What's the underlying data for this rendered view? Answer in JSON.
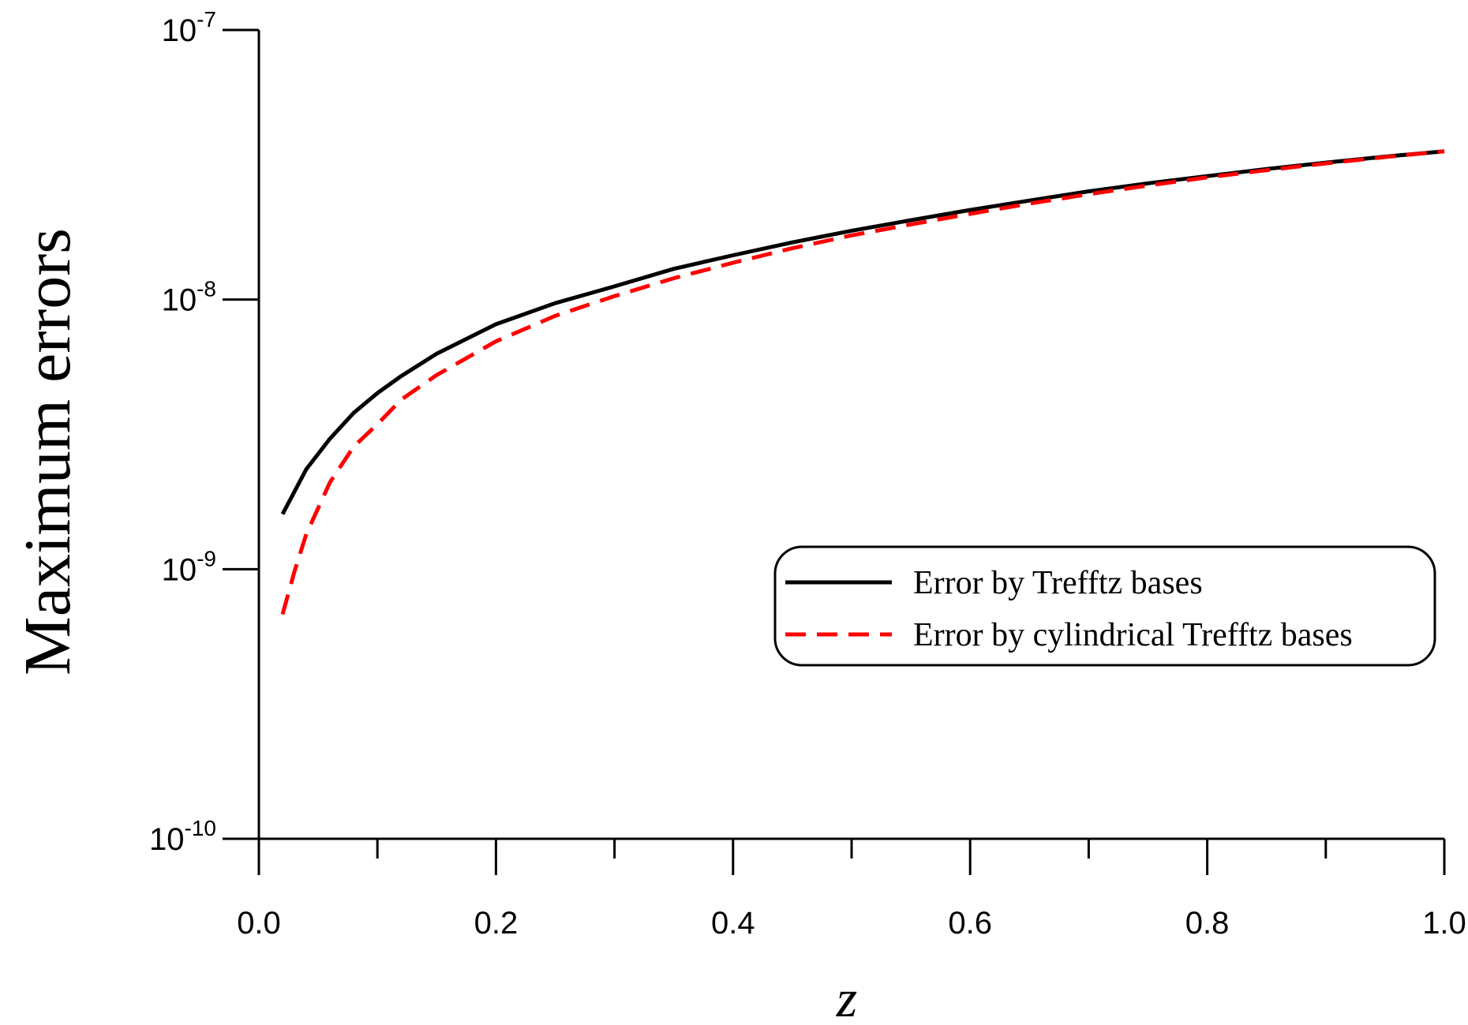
{
  "chart_data": {
    "type": "line",
    "title": "",
    "xlabel": "z",
    "ylabel": "Maximum errors",
    "xlim": [
      0.0,
      1.0
    ],
    "ylim": [
      1e-10,
      1e-07
    ],
    "yscale": "log",
    "grid": false,
    "legend_position": "center-right",
    "x_ticks": [
      {
        "value": 0.0,
        "label": "0.0"
      },
      {
        "value": 0.2,
        "label": "0.2"
      },
      {
        "value": 0.4,
        "label": "0.4"
      },
      {
        "value": 0.6,
        "label": "0.6"
      },
      {
        "value": 0.8,
        "label": "0.8"
      },
      {
        "value": 1.0,
        "label": "1.0"
      }
    ],
    "x_minor_ticks": [
      0.1,
      0.3,
      0.5,
      0.7,
      0.9
    ],
    "y_ticks": [
      {
        "value": 1e-07,
        "base": "10",
        "exp": "-7"
      },
      {
        "value": 1e-08,
        "base": "10",
        "exp": "-8"
      },
      {
        "value": 1e-09,
        "base": "10",
        "exp": "-9"
      },
      {
        "value": 1e-10,
        "base": "10",
        "exp": "-10"
      }
    ],
    "series": [
      {
        "name": "Error by Trefftz bases",
        "color": "#000000",
        "dash": "solid",
        "x": [
          0.02,
          0.04,
          0.06,
          0.08,
          0.1,
          0.12,
          0.15,
          0.2,
          0.25,
          0.3,
          0.35,
          0.4,
          0.45,
          0.5,
          0.55,
          0.6,
          0.65,
          0.7,
          0.75,
          0.8,
          0.85,
          0.9,
          0.95,
          1.0
        ],
        "y": [
          1.6e-09,
          2.35e-09,
          3.05e-09,
          3.8e-09,
          4.5e-09,
          5.2e-09,
          6.3e-09,
          8.1e-09,
          9.7e-09,
          1.12e-08,
          1.3e-08,
          1.46e-08,
          1.63e-08,
          1.8e-08,
          1.97e-08,
          2.15e-08,
          2.33e-08,
          2.52e-08,
          2.7e-08,
          2.87e-08,
          3.05e-08,
          3.22e-08,
          3.39e-08,
          3.55e-08
        ]
      },
      {
        "name": "Error by cylindrical Trefftz bases",
        "color": "#ff0000",
        "dash": "dashed",
        "x": [
          0.02,
          0.03,
          0.04,
          0.06,
          0.08,
          0.1,
          0.12,
          0.15,
          0.2,
          0.25,
          0.3,
          0.35,
          0.4,
          0.45,
          0.5,
          0.55,
          0.6,
          0.65,
          0.7,
          0.75,
          0.8,
          0.85,
          0.9,
          0.95,
          1.0
        ],
        "y": [
          6.8e-10,
          9.8e-10,
          1.35e-09,
          2.1e-09,
          2.85e-09,
          3.45e-09,
          4.25e-09,
          5.25e-09,
          7e-09,
          8.7e-09,
          1.03e-08,
          1.2e-08,
          1.37e-08,
          1.55e-08,
          1.73e-08,
          1.9e-08,
          2.08e-08,
          2.27e-08,
          2.46e-08,
          2.65e-08,
          2.84e-08,
          3.02e-08,
          3.2e-08,
          3.38e-08,
          3.55e-08
        ]
      }
    ]
  }
}
